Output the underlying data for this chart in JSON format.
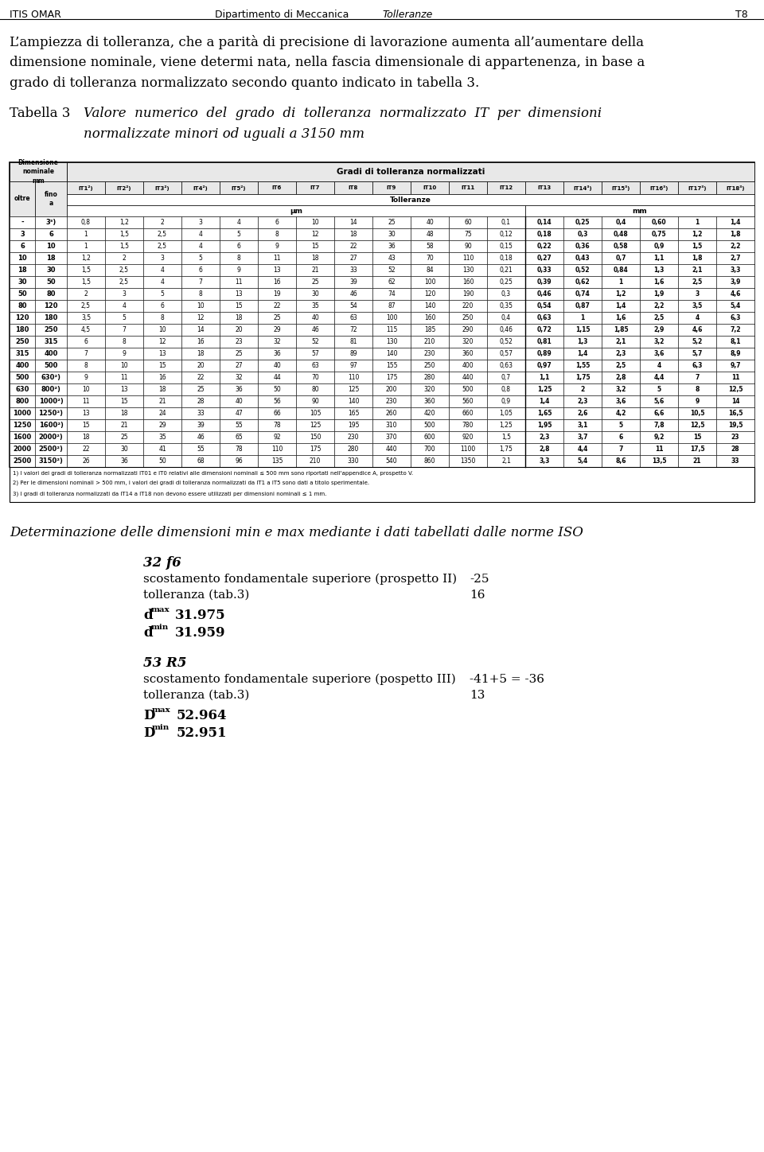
{
  "header_left": "ITIS OMAR",
  "header_center_left": "Dipartimento di Meccanica",
  "header_center": "Tolleranze",
  "header_right": "T8",
  "intro_text": "L’ampiezza di tolleranza, che a parità di precisione di lavorazione aumenta all’aumentare della\ndimensione nominale, viene determi nata, nella fascia dimensionale di appartenenza, in base a\ngrado di tolleranza normalizzato secondo quanto indicato in tabella 3.",
  "tabella_label": "Tabella 3",
  "tabella_title_line1": "Valore  numerico  del  grado  di  tolleranza  normalizzato  IT  per  dimensioni",
  "tabella_title_line2": "normalizzate minori od uguali a 3150 mm",
  "col_headers_it_display": [
    "IT1²)",
    "IT2²)",
    "IT3²)",
    "IT4²)",
    "IT5²)",
    "IT6",
    "IT7",
    "IT8",
    "IT9",
    "IT10",
    "IT11",
    "IT12",
    "IT13",
    "IT14³)",
    "IT15³)",
    "IT16³)",
    "IT17³)",
    "IT18³)"
  ],
  "row_headers_display": [
    [
      "-",
      "3³)"
    ],
    [
      "3",
      "6"
    ],
    [
      "6",
      "10"
    ],
    [
      "10",
      "18"
    ],
    [
      "18",
      "30"
    ],
    [
      "30",
      "50"
    ],
    [
      "50",
      "80"
    ],
    [
      "80",
      "120"
    ],
    [
      "120",
      "180"
    ],
    [
      "180",
      "250"
    ],
    [
      "250",
      "315"
    ],
    [
      "315",
      "400"
    ],
    [
      "400",
      "500"
    ],
    [
      "500",
      "630²)"
    ],
    [
      "630",
      "800²)"
    ],
    [
      "800",
      "1000²)"
    ],
    [
      "1000",
      "1250²)"
    ],
    [
      "1250",
      "1600²)"
    ],
    [
      "1600",
      "2000²)"
    ],
    [
      "2000",
      "2500²)"
    ],
    [
      "2500",
      "3150²)"
    ]
  ],
  "table_data": [
    [
      "0,8",
      "1,2",
      "2",
      "3",
      "4",
      "6",
      "10",
      "14",
      "25",
      "40",
      "60",
      "0,1",
      "0,14",
      "0,25",
      "0,4",
      "0,60",
      "1",
      "1,4"
    ],
    [
      "1",
      "1,5",
      "2,5",
      "4",
      "5",
      "8",
      "12",
      "18",
      "30",
      "48",
      "75",
      "0,12",
      "0,18",
      "0,3",
      "0,48",
      "0,75",
      "1,2",
      "1,8"
    ],
    [
      "1",
      "1,5",
      "2,5",
      "4",
      "6",
      "9",
      "15",
      "22",
      "36",
      "58",
      "90",
      "0,15",
      "0,22",
      "0,36",
      "0,58",
      "0,9",
      "1,5",
      "2,2"
    ],
    [
      "1,2",
      "2",
      "3",
      "5",
      "8",
      "11",
      "18",
      "27",
      "43",
      "70",
      "110",
      "0,18",
      "0,27",
      "0,43",
      "0,7",
      "1,1",
      "1,8",
      "2,7"
    ],
    [
      "1,5",
      "2,5",
      "4",
      "6",
      "9",
      "13",
      "21",
      "33",
      "52",
      "84",
      "130",
      "0,21",
      "0,33",
      "0,52",
      "0,84",
      "1,3",
      "2,1",
      "3,3"
    ],
    [
      "1,5",
      "2,5",
      "4",
      "7",
      "11",
      "16",
      "25",
      "39",
      "62",
      "100",
      "160",
      "0,25",
      "0,39",
      "0,62",
      "1",
      "1,6",
      "2,5",
      "3,9"
    ],
    [
      "2",
      "3",
      "5",
      "8",
      "13",
      "19",
      "30",
      "46",
      "74",
      "120",
      "190",
      "0,3",
      "0,46",
      "0,74",
      "1,2",
      "1,9",
      "3",
      "4,6"
    ],
    [
      "2,5",
      "4",
      "6",
      "10",
      "15",
      "22",
      "35",
      "54",
      "87",
      "140",
      "220",
      "0,35",
      "0,54",
      "0,87",
      "1,4",
      "2,2",
      "3,5",
      "5,4"
    ],
    [
      "3,5",
      "5",
      "8",
      "12",
      "18",
      "25",
      "40",
      "63",
      "100",
      "160",
      "250",
      "0,4",
      "0,63",
      "1",
      "1,6",
      "2,5",
      "4",
      "6,3"
    ],
    [
      "4,5",
      "7",
      "10",
      "14",
      "20",
      "29",
      "46",
      "72",
      "115",
      "185",
      "290",
      "0,46",
      "0,72",
      "1,15",
      "1,85",
      "2,9",
      "4,6",
      "7,2"
    ],
    [
      "6",
      "8",
      "12",
      "16",
      "23",
      "32",
      "52",
      "81",
      "130",
      "210",
      "320",
      "0,52",
      "0,81",
      "1,3",
      "2,1",
      "3,2",
      "5,2",
      "8,1"
    ],
    [
      "7",
      "9",
      "13",
      "18",
      "25",
      "36",
      "57",
      "89",
      "140",
      "230",
      "360",
      "0,57",
      "0,89",
      "1,4",
      "2,3",
      "3,6",
      "5,7",
      "8,9"
    ],
    [
      "8",
      "10",
      "15",
      "20",
      "27",
      "40",
      "63",
      "97",
      "155",
      "250",
      "400",
      "0,63",
      "0,97",
      "1,55",
      "2,5",
      "4",
      "6,3",
      "9,7"
    ],
    [
      "9",
      "11",
      "16",
      "22",
      "32",
      "44",
      "70",
      "110",
      "175",
      "280",
      "440",
      "0,7",
      "1,1",
      "1,75",
      "2,8",
      "4,4",
      "7",
      "11"
    ],
    [
      "10",
      "13",
      "18",
      "25",
      "36",
      "50",
      "80",
      "125",
      "200",
      "320",
      "500",
      "0,8",
      "1,25",
      "2",
      "3,2",
      "5",
      "8",
      "12,5"
    ],
    [
      "11",
      "15",
      "21",
      "28",
      "40",
      "56",
      "90",
      "140",
      "230",
      "360",
      "560",
      "0,9",
      "1,4",
      "2,3",
      "3,6",
      "5,6",
      "9",
      "14"
    ],
    [
      "13",
      "18",
      "24",
      "33",
      "47",
      "66",
      "105",
      "165",
      "260",
      "420",
      "660",
      "1,05",
      "1,65",
      "2,6",
      "4,2",
      "6,6",
      "10,5",
      "16,5"
    ],
    [
      "15",
      "21",
      "29",
      "39",
      "55",
      "78",
      "125",
      "195",
      "310",
      "500",
      "780",
      "1,25",
      "1,95",
      "3,1",
      "5",
      "7,8",
      "12,5",
      "19,5"
    ],
    [
      "18",
      "25",
      "35",
      "46",
      "65",
      "92",
      "150",
      "230",
      "370",
      "600",
      "920",
      "1,5",
      "2,3",
      "3,7",
      "6",
      "9,2",
      "15",
      "23"
    ],
    [
      "22",
      "30",
      "41",
      "55",
      "78",
      "110",
      "175",
      "280",
      "440",
      "700",
      "1100",
      "1,75",
      "2,8",
      "4,4",
      "7",
      "11",
      "17,5",
      "28"
    ],
    [
      "26",
      "36",
      "50",
      "68",
      "96",
      "135",
      "210",
      "330",
      "540",
      "860",
      "1350",
      "2,1",
      "3,3",
      "5,4",
      "8,6",
      "13,5",
      "21",
      "33"
    ]
  ],
  "footnotes": [
    "1) I valori dei gradi di tolleranza normalizzati IT01 e IT0 relativi alle dimensioni nominali ≤ 500 mm sono riportati nell'appendice A, prospetto V.",
    "2) Per le dimensioni nominali > 500 mm, i valori dei gradi di tolleranza normalizzati da IT1 a IT5 sono dati a titolo sperimentale.",
    "3) I gradi di tolleranza normalizzati da IT14 a IT18 non devono essere utilizzati per dimensioni nominali ≤ 1 mm."
  ],
  "det_title": "Determinazione delle dimensioni min e max mediante i dati tabellati dalle norme ISO",
  "case1_title": "32 f6",
  "case1_line1": "scostamento fondamentale superiore (prospetto II)",
  "case1_val1": "-25",
  "case1_line2": "tolleranza (tab.3)",
  "case1_val2": "16",
  "case1_dmax_val": "31.975",
  "case1_dmin_val": "31.959",
  "case2_title": "53 R5",
  "case2_line1": "scostamento fondamentale superiore (pospetto III)",
  "case2_val1": "-41+5 = -36",
  "case2_line2": "tolleranza (tab.3)",
  "case2_val2": "13",
  "case2_dmax_val": "52.964",
  "case2_dmin_val": "52.951",
  "bg_color": "#ffffff"
}
